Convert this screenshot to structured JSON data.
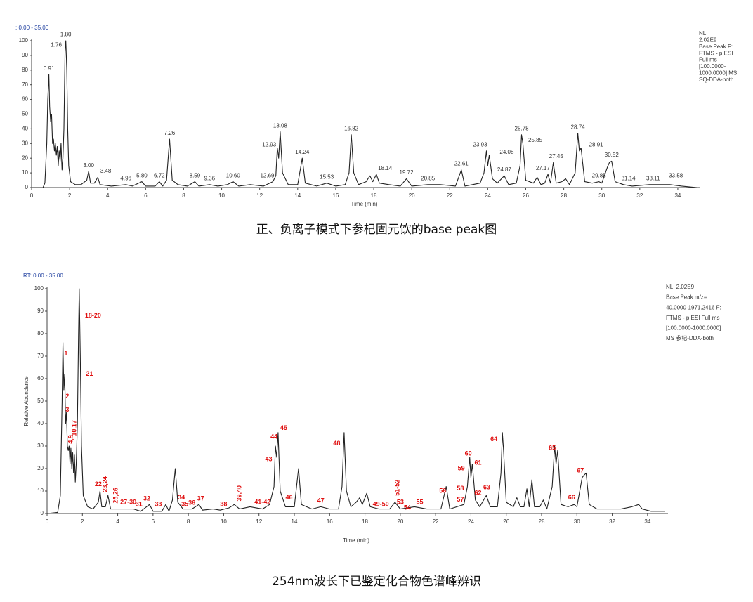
{
  "chart_data": [
    {
      "type": "line",
      "range_label": ": 0.00 - 35.00",
      "info": [
        "NL:",
        "2.02E9",
        "Base Peak F:",
        "FTMS - p ESI",
        "Full ms",
        "[100.0000-",
        "1000.0000]  MS",
        "SQ-DDA-both"
      ],
      "caption": "正、负离子模式下参杞固元饮的base peak图",
      "x_label": "Time (min)",
      "xlim": [
        0,
        35
      ],
      "ylim": [
        0,
        100
      ],
      "xticks": [
        0,
        2,
        4,
        6,
        8,
        10,
        12,
        14,
        16,
        18,
        20,
        22,
        24,
        26,
        28,
        30,
        32,
        34
      ],
      "yticks": [
        0,
        10,
        20,
        30,
        40,
        50,
        60,
        70,
        80,
        90,
        100
      ],
      "x": [
        0,
        0.6,
        0.7,
        0.8,
        0.85,
        0.91,
        0.95,
        1.0,
        1.05,
        1.1,
        1.15,
        1.2,
        1.25,
        1.3,
        1.35,
        1.4,
        1.45,
        1.5,
        1.55,
        1.6,
        1.65,
        1.7,
        1.76,
        1.8,
        1.85,
        1.9,
        1.95,
        2.05,
        2.3,
        2.6,
        2.9,
        3.0,
        3.1,
        3.3,
        3.48,
        3.6,
        4.2,
        4.96,
        5.3,
        5.8,
        6.0,
        6.5,
        6.72,
        6.9,
        7.1,
        7.26,
        7.4,
        7.7,
        8.2,
        8.59,
        8.8,
        9.36,
        9.8,
        10.3,
        10.6,
        10.9,
        11.5,
        12.2,
        12.69,
        12.85,
        12.93,
        13.0,
        13.08,
        13.2,
        13.5,
        14.0,
        14.24,
        14.4,
        15.0,
        15.53,
        16.0,
        16.5,
        16.7,
        16.82,
        16.95,
        17.2,
        17.6,
        17.8,
        17.95,
        18.14,
        18.3,
        18.8,
        19.4,
        19.72,
        20.0,
        20.85,
        21.5,
        22.3,
        22.61,
        22.8,
        23.6,
        23.8,
        23.93,
        24.0,
        24.08,
        24.25,
        24.5,
        24.87,
        25.1,
        25.5,
        25.7,
        25.78,
        25.85,
        26.0,
        26.4,
        26.6,
        26.8,
        27.0,
        27.17,
        27.3,
        27.45,
        27.6,
        27.9,
        28.1,
        28.3,
        28.6,
        28.74,
        28.82,
        28.91,
        29.1,
        29.5,
        29.85,
        30.0,
        30.3,
        30.4,
        30.52,
        30.7,
        31.14,
        31.6,
        32.5,
        33.11,
        33.58,
        34.2,
        35
      ],
      "series": [
        {
          "color": "#222222",
          "values": [
            0,
            0,
            3,
            30,
            60,
            77,
            55,
            45,
            50,
            30,
            33,
            25,
            30,
            22,
            28,
            15,
            25,
            18,
            30,
            12,
            20,
            40,
            93,
            100,
            80,
            40,
            15,
            4,
            2,
            2,
            5,
            11,
            3,
            3,
            7,
            2,
            1,
            2,
            1,
            4,
            1,
            1,
            4,
            1,
            5,
            33,
            5,
            2,
            1,
            4,
            1,
            2,
            1,
            2,
            4,
            1,
            2,
            1,
            4,
            8,
            27,
            20,
            38,
            10,
            2,
            2,
            20,
            3,
            1,
            3,
            1,
            2,
            10,
            36,
            10,
            2,
            4,
            8,
            4,
            9,
            3,
            2,
            1,
            6,
            1,
            2,
            2,
            1,
            12,
            1,
            3,
            10,
            25,
            15,
            22,
            6,
            3,
            8,
            2,
            3,
            15,
            36,
            30,
            5,
            3,
            7,
            2,
            3,
            9,
            3,
            17,
            3,
            4,
            6,
            2,
            10,
            37,
            25,
            27,
            4,
            3,
            4,
            3,
            14,
            17,
            18,
            4,
            2,
            1,
            2,
            2,
            2,
            1,
            0
          ]
        }
      ],
      "annotation_color": "#333333",
      "annotations": [
        {
          "text": "0.91",
          "x": 0.91,
          "y": 81
        },
        {
          "text": "1.76",
          "x": 1.3,
          "y": 97
        },
        {
          "text": "1.80",
          "x": 1.8,
          "y": 104
        },
        {
          "text": "3.00",
          "x": 3.0,
          "y": 15
        },
        {
          "text": "3.48",
          "x": 3.9,
          "y": 11
        },
        {
          "text": "4.96",
          "x": 4.96,
          "y": 6
        },
        {
          "text": "5.80",
          "x": 5.8,
          "y": 8
        },
        {
          "text": "6.72",
          "x": 6.72,
          "y": 8
        },
        {
          "text": "7.26",
          "x": 7.26,
          "y": 37
        },
        {
          "text": "8.59",
          "x": 8.59,
          "y": 8
        },
        {
          "text": "9.36",
          "x": 9.36,
          "y": 6
        },
        {
          "text": "10.60",
          "x": 10.6,
          "y": 8
        },
        {
          "text": "12.69",
          "x": 12.4,
          "y": 8
        },
        {
          "text": "12.93",
          "x": 12.5,
          "y": 29
        },
        {
          "text": "13.08",
          "x": 13.08,
          "y": 42
        },
        {
          "text": "14.24",
          "x": 14.24,
          "y": 24
        },
        {
          "text": "15.53",
          "x": 15.53,
          "y": 7
        },
        {
          "text": "16.82",
          "x": 16.82,
          "y": 40
        },
        {
          "text": "18.14",
          "x": 18.6,
          "y": 13
        },
        {
          "text": "19.72",
          "x": 19.72,
          "y": 10
        },
        {
          "text": "20.85",
          "x": 20.85,
          "y": 6
        },
        {
          "text": "22.61",
          "x": 22.61,
          "y": 16
        },
        {
          "text": "23.93",
          "x": 23.6,
          "y": 29
        },
        {
          "text": "24.08",
          "x": 25.0,
          "y": 24
        },
        {
          "text": "24.87",
          "x": 24.87,
          "y": 12
        },
        {
          "text": "25.78",
          "x": 25.78,
          "y": 40
        },
        {
          "text": "25.85",
          "x": 26.5,
          "y": 32
        },
        {
          "text": "27.17",
          "x": 26.9,
          "y": 13
        },
        {
          "text": "27.45",
          "x": 27.6,
          "y": 21
        },
        {
          "text": "28.74",
          "x": 28.74,
          "y": 41
        },
        {
          "text": "28.91",
          "x": 29.7,
          "y": 29
        },
        {
          "text": "29.85",
          "x": 29.85,
          "y": 8
        },
        {
          "text": "30.52",
          "x": 30.52,
          "y": 22
        },
        {
          "text": "31.14",
          "x": 31.4,
          "y": 6
        },
        {
          "text": "33.11",
          "x": 32.7,
          "y": 6
        },
        {
          "text": "33.58",
          "x": 33.9,
          "y": 8
        }
      ]
    },
    {
      "type": "line",
      "range_label": "RT: 0.00 - 35.00",
      "info": [
        "NL: 2.02E9",
        "Base Peak m/z=",
        "40.0000-1971.2416 F:",
        "FTMS - p ESI Full ms",
        "[100.0000-1000.0000]",
        "MS 参杞-DDA-both"
      ],
      "caption": "254nm波长下已鉴定化合物色谱峰辨识",
      "x_label": "Time (min)",
      "y_label": "Relative Abundance",
      "xlim": [
        0,
        35
      ],
      "ylim": [
        0,
        100
      ],
      "xticks": [
        0,
        2,
        4,
        6,
        8,
        10,
        12,
        14,
        16,
        18,
        20,
        22,
        24,
        26,
        28,
        30,
        32,
        34
      ],
      "yticks": [
        0,
        10,
        20,
        30,
        40,
        50,
        60,
        70,
        80,
        90,
        100
      ],
      "x": [
        0,
        0.6,
        0.75,
        0.85,
        0.9,
        0.95,
        1.0,
        1.05,
        1.1,
        1.15,
        1.2,
        1.25,
        1.3,
        1.35,
        1.4,
        1.45,
        1.5,
        1.55,
        1.6,
        1.65,
        1.72,
        1.78,
        1.82,
        1.88,
        1.95,
        2.05,
        2.3,
        2.6,
        2.9,
        3.0,
        3.1,
        3.3,
        3.45,
        3.6,
        4.2,
        4.9,
        5.3,
        5.8,
        6.0,
        6.5,
        6.72,
        6.9,
        7.1,
        7.26,
        7.4,
        7.7,
        8.2,
        8.6,
        8.8,
        9.4,
        9.8,
        10.3,
        10.6,
        10.9,
        11.5,
        12.2,
        12.6,
        12.85,
        12.93,
        13.0,
        13.08,
        13.2,
        13.5,
        14.0,
        14.24,
        14.4,
        15.0,
        15.5,
        16.0,
        16.5,
        16.7,
        16.82,
        16.95,
        17.2,
        17.5,
        17.7,
        17.85,
        18.1,
        18.3,
        18.8,
        19.4,
        19.7,
        20.0,
        20.8,
        21.5,
        22.3,
        22.6,
        22.8,
        23.6,
        23.8,
        23.93,
        24.0,
        24.08,
        24.25,
        24.5,
        24.87,
        25.1,
        25.5,
        25.7,
        25.78,
        25.85,
        26.0,
        26.4,
        26.6,
        26.8,
        27.0,
        27.17,
        27.3,
        27.45,
        27.6,
        27.9,
        28.1,
        28.3,
        28.6,
        28.74,
        28.82,
        28.91,
        29.1,
        29.5,
        29.85,
        30.0,
        30.3,
        30.4,
        30.52,
        30.7,
        31.14,
        31.6,
        32.5,
        33.11,
        33.5,
        33.7,
        34.2,
        35
      ],
      "series": [
        {
          "color": "#222222",
          "values": [
            0,
            0.5,
            8,
            50,
            76,
            55,
            62,
            40,
            45,
            30,
            28,
            30,
            22,
            29,
            20,
            27,
            18,
            26,
            14,
            22,
            40,
            80,
            100,
            70,
            30,
            8,
            3,
            2,
            5,
            10,
            3,
            3,
            8,
            2,
            2,
            2,
            1,
            4,
            1,
            1,
            4,
            1,
            6,
            20,
            5,
            2,
            2,
            4,
            1.5,
            2,
            1.5,
            2.5,
            4,
            2,
            3,
            2,
            4,
            12,
            30,
            25,
            36,
            10,
            3,
            3,
            20,
            4,
            2,
            3,
            2,
            2,
            12,
            36,
            10,
            3,
            5,
            7,
            4,
            9,
            3,
            2,
            2,
            5,
            2,
            3,
            2,
            2,
            12,
            2,
            4,
            12,
            25,
            16,
            22,
            6,
            3,
            8,
            3,
            3,
            18,
            36,
            28,
            5,
            3,
            7,
            3,
            3,
            11,
            3,
            15,
            3,
            3,
            6,
            2,
            12,
            30,
            22,
            28,
            4,
            3,
            4,
            3,
            16,
            17,
            18,
            4,
            2,
            2,
            2,
            3,
            4,
            2,
            1,
            1
          ]
        }
      ],
      "annotation_color": "#e01010",
      "annotations": [
        {
          "text": "1",
          "x": 1.07,
          "y": 71
        },
        {
          "text": "18-20",
          "x": 2.6,
          "y": 88
        },
        {
          "text": "21",
          "x": 2.4,
          "y": 62
        },
        {
          "text": "2",
          "x": 1.15,
          "y": 52
        },
        {
          "text": "3",
          "x": 1.15,
          "y": 46
        },
        {
          "text": "10,17",
          "x": 1.55,
          "y": 38,
          "vertical": true
        },
        {
          "text": "4,9",
          "x": 1.35,
          "y": 33,
          "vertical": true
        },
        {
          "text": "22",
          "x": 2.9,
          "y": 13
        },
        {
          "text": "23,24",
          "x": 3.3,
          "y": 13,
          "vertical": true
        },
        {
          "text": "25,26",
          "x": 3.9,
          "y": 8,
          "vertical": true
        },
        {
          "text": "27-30",
          "x": 4.6,
          "y": 5
        },
        {
          "text": "31",
          "x": 5.2,
          "y": 4
        },
        {
          "text": "32",
          "x": 5.65,
          "y": 6.5
        },
        {
          "text": "33",
          "x": 6.3,
          "y": 4
        },
        {
          "text": "34",
          "x": 7.6,
          "y": 7
        },
        {
          "text": "35",
          "x": 7.8,
          "y": 4
        },
        {
          "text": "36",
          "x": 8.2,
          "y": 4.7
        },
        {
          "text": "37",
          "x": 8.7,
          "y": 6.5
        },
        {
          "text": "38",
          "x": 10.0,
          "y": 4
        },
        {
          "text": "39,40",
          "x": 10.9,
          "y": 9,
          "vertical": true
        },
        {
          "text": "41-42",
          "x": 12.2,
          "y": 5
        },
        {
          "text": "43",
          "x": 12.55,
          "y": 24
        },
        {
          "text": "44",
          "x": 12.85,
          "y": 34
        },
        {
          "text": "45",
          "x": 13.4,
          "y": 38
        },
        {
          "text": "46",
          "x": 13.7,
          "y": 7
        },
        {
          "text": "47",
          "x": 15.5,
          "y": 5.6
        },
        {
          "text": "48",
          "x": 16.4,
          "y": 31
        },
        {
          "text": "49-50",
          "x": 18.9,
          "y": 4
        },
        {
          "text": "51-52",
          "x": 19.85,
          "y": 11.5,
          "vertical": true
        },
        {
          "text": "53",
          "x": 20.0,
          "y": 5
        },
        {
          "text": "54",
          "x": 20.4,
          "y": 2.5
        },
        {
          "text": "55",
          "x": 21.1,
          "y": 5
        },
        {
          "text": "56",
          "x": 22.4,
          "y": 10
        },
        {
          "text": "57",
          "x": 23.4,
          "y": 6
        },
        {
          "text": "58",
          "x": 23.4,
          "y": 11
        },
        {
          "text": "59",
          "x": 23.45,
          "y": 20
        },
        {
          "text": "60",
          "x": 23.85,
          "y": 26.5
        },
        {
          "text": "61",
          "x": 24.4,
          "y": 22.5
        },
        {
          "text": "62",
          "x": 24.4,
          "y": 9
        },
        {
          "text": "63",
          "x": 24.9,
          "y": 11.5
        },
        {
          "text": "64",
          "x": 25.3,
          "y": 33
        },
        {
          "text": "65",
          "x": 28.6,
          "y": 29
        },
        {
          "text": "66",
          "x": 29.7,
          "y": 7
        },
        {
          "text": "67",
          "x": 30.2,
          "y": 19
        }
      ]
    }
  ]
}
